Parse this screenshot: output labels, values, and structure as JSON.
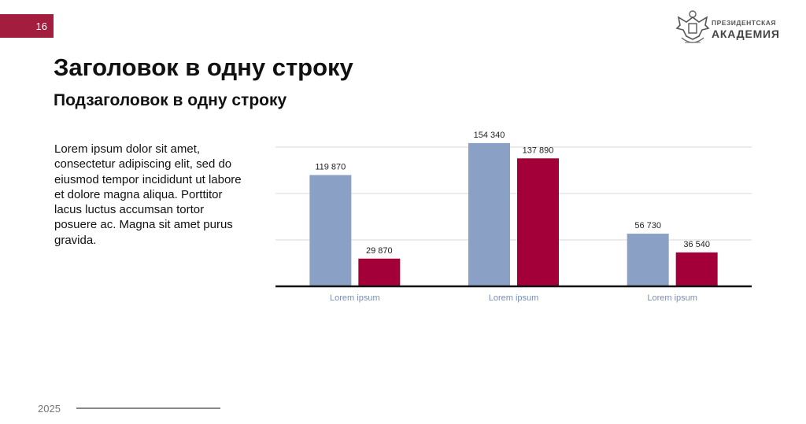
{
  "page_number": "16",
  "logo": {
    "line1": "ПРЕЗИДЕНТСКАЯ",
    "line2": "АКАДЕМИЯ"
  },
  "title": "Заголовок в одну строку",
  "subtitle": "Подзаголовок в одну строку",
  "body_text": "Lorem ipsum dolor sit amet, consectetur adipiscing elit, sed do eiusmod tempor incididunt ut labore et dolore magna aliqua. Porttitor lacus luctus accumsan tortor posuere ac. Magna sit amet purus gravida.",
  "footer": {
    "year": "2025"
  },
  "colors": {
    "accent": "#a31e3e",
    "series_1": "#8aa0c4",
    "series_2": "#a3003a"
  },
  "chart_data": {
    "type": "bar",
    "categories": [
      "Lorem ipsum",
      "Lorem ipsum",
      "Lorem ipsum"
    ],
    "series": [
      {
        "values": [
          119870,
          154340,
          56730
        ],
        "labels": [
          "119 870",
          "154 340",
          "56 730"
        ],
        "color": "#8aa0c4"
      },
      {
        "values": [
          29870,
          137890,
          36540
        ],
        "labels": [
          "29 870",
          "137 890",
          "36 540"
        ],
        "color": "#a3003a"
      }
    ],
    "ylim": [
      0,
      150000
    ],
    "grid": true,
    "legend": "none"
  }
}
